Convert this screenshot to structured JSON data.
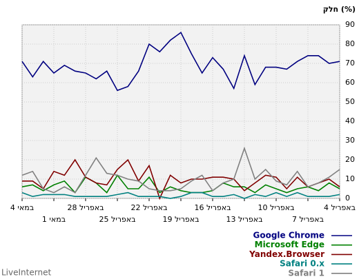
{
  "chart_data": {
    "type": "line",
    "title": "חלק (%)",
    "categories": [
      "4 במאי",
      null,
      null,
      "1 במאי",
      null,
      null,
      "28 באפריל",
      null,
      null,
      "25 באפריל",
      null,
      null,
      "22 באפריל",
      null,
      null,
      "19 באפריל",
      null,
      null,
      "16 באפריל",
      null,
      null,
      "13 באפריל",
      null,
      null,
      "10 באפריל",
      null,
      null,
      "7 באפריל",
      null,
      null,
      "4 באפריל"
    ],
    "series": [
      {
        "name": "Google Chrome",
        "color": "#000080",
        "values": [
          71,
          63,
          71,
          65,
          69,
          66,
          65,
          62,
          66,
          56,
          58,
          66,
          80,
          76,
          82,
          86,
          75,
          65,
          73,
          67,
          57,
          74,
          59,
          68,
          68,
          67,
          71,
          74,
          74,
          70,
          71
        ]
      },
      {
        "name": "Microsoft Edge",
        "color": "#008000",
        "values": [
          6,
          7,
          4,
          7,
          9,
          3,
          11,
          8,
          3,
          12,
          5,
          5,
          11,
          3,
          6,
          4,
          3,
          3,
          4,
          8,
          6,
          6,
          3,
          7,
          5,
          3,
          5,
          6,
          4,
          8,
          5
        ]
      },
      {
        "name": "Yandex.Browser",
        "color": "#800000",
        "values": [
          9,
          9,
          5,
          14,
          12,
          20,
          11,
          8,
          7,
          15,
          20,
          9,
          17,
          0,
          12,
          8,
          10,
          10,
          11,
          11,
          10,
          4,
          8,
          12,
          11,
          5,
          11,
          6,
          8,
          10,
          6
        ]
      },
      {
        "name": "Safari 0.x",
        "color": "#008080",
        "values": [
          3,
          1,
          2,
          2,
          2,
          1,
          1,
          1,
          1,
          2,
          3,
          1,
          1,
          1,
          0,
          1,
          3,
          3,
          1,
          1,
          2,
          0,
          2,
          1,
          3,
          1,
          3,
          1,
          1,
          1,
          2
        ]
      },
      {
        "name": "Safari 1",
        "color": "#808080",
        "values": [
          12,
          14,
          5,
          3,
          6,
          3,
          12,
          21,
          13,
          12,
          10,
          9,
          5,
          4,
          4,
          5,
          9,
          12,
          4,
          8,
          10,
          26,
          10,
          15,
          9,
          7,
          14,
          6,
          8,
          11,
          15
        ]
      }
    ],
    "ylim": [
      0,
      90
    ],
    "yticks": [
      0,
      10,
      20,
      30,
      40,
      50,
      60,
      70,
      80,
      90
    ],
    "grid": true,
    "footer": "LiveInternet"
  }
}
